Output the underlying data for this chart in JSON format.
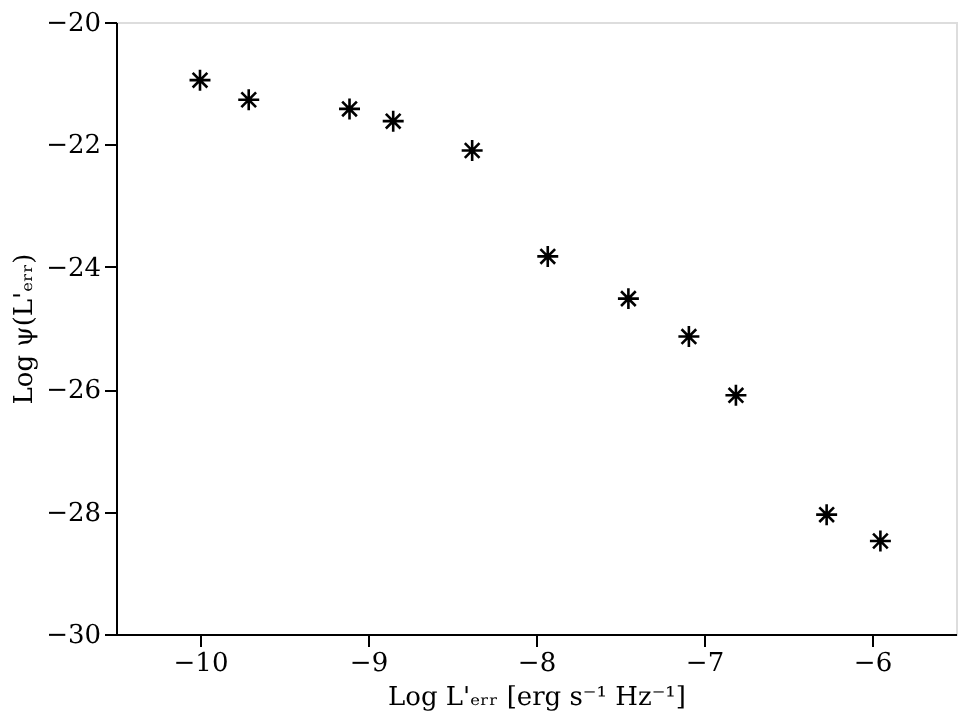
{
  "chart_data": {
    "type": "scatter",
    "xlabel": "Log L'ₑᵣᵣ [erg s⁻¹ Hz⁻¹]",
    "ylabel": "Log ψ(L'ₑᵣᵣ)",
    "x": [
      -10.0,
      -9.71,
      -9.11,
      -8.85,
      -8.38,
      -7.93,
      -7.45,
      -7.09,
      -6.81,
      -6.27,
      -5.95
    ],
    "series": [
      {
        "color": "#000000",
        "values": [
          -20.95,
          -21.27,
          -21.42,
          -21.62,
          -22.1,
          -23.83,
          -24.52,
          -25.14,
          -26.1,
          -28.05,
          -28.48
        ]
      }
    ],
    "xlim": [
      -10.5,
      -5.5
    ],
    "xticks": [
      -10,
      -9,
      -8,
      -7,
      -6
    ],
    "ylim": [
      -30,
      -20
    ],
    "yticks": [
      -30,
      -28,
      -26,
      -24,
      -22,
      -20
    ],
    "marker": "cross",
    "grid": false,
    "legend": false
  }
}
